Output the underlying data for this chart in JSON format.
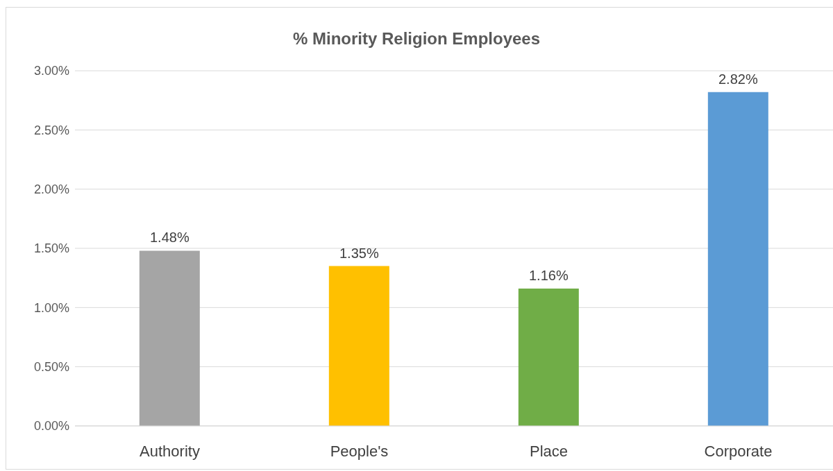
{
  "chart_data": {
    "type": "bar",
    "title": "% Minority Religion Employees",
    "categories": [
      "Authority",
      "People's",
      "Place",
      "Corporate"
    ],
    "values": [
      1.48,
      1.35,
      1.16,
      2.82
    ],
    "colors": [
      "#a5a5a5",
      "#ffc000",
      "#70ad47",
      "#5b9bd5"
    ],
    "value_labels": [
      "1.48%",
      "1.35%",
      "1.16%",
      "2.82%"
    ],
    "ylim": [
      0,
      3
    ],
    "yticks": [
      {
        "value": 0,
        "label": "0.00%"
      },
      {
        "value": 0.5,
        "label": "0.50%"
      },
      {
        "value": 1,
        "label": "1.00%"
      },
      {
        "value": 1.5,
        "label": "1.50%"
      },
      {
        "value": 2,
        "label": "2.00%"
      },
      {
        "value": 2.5,
        "label": "2.50%"
      },
      {
        "value": 3,
        "label": "3.00%"
      }
    ],
    "grid": "y",
    "legend": false
  }
}
